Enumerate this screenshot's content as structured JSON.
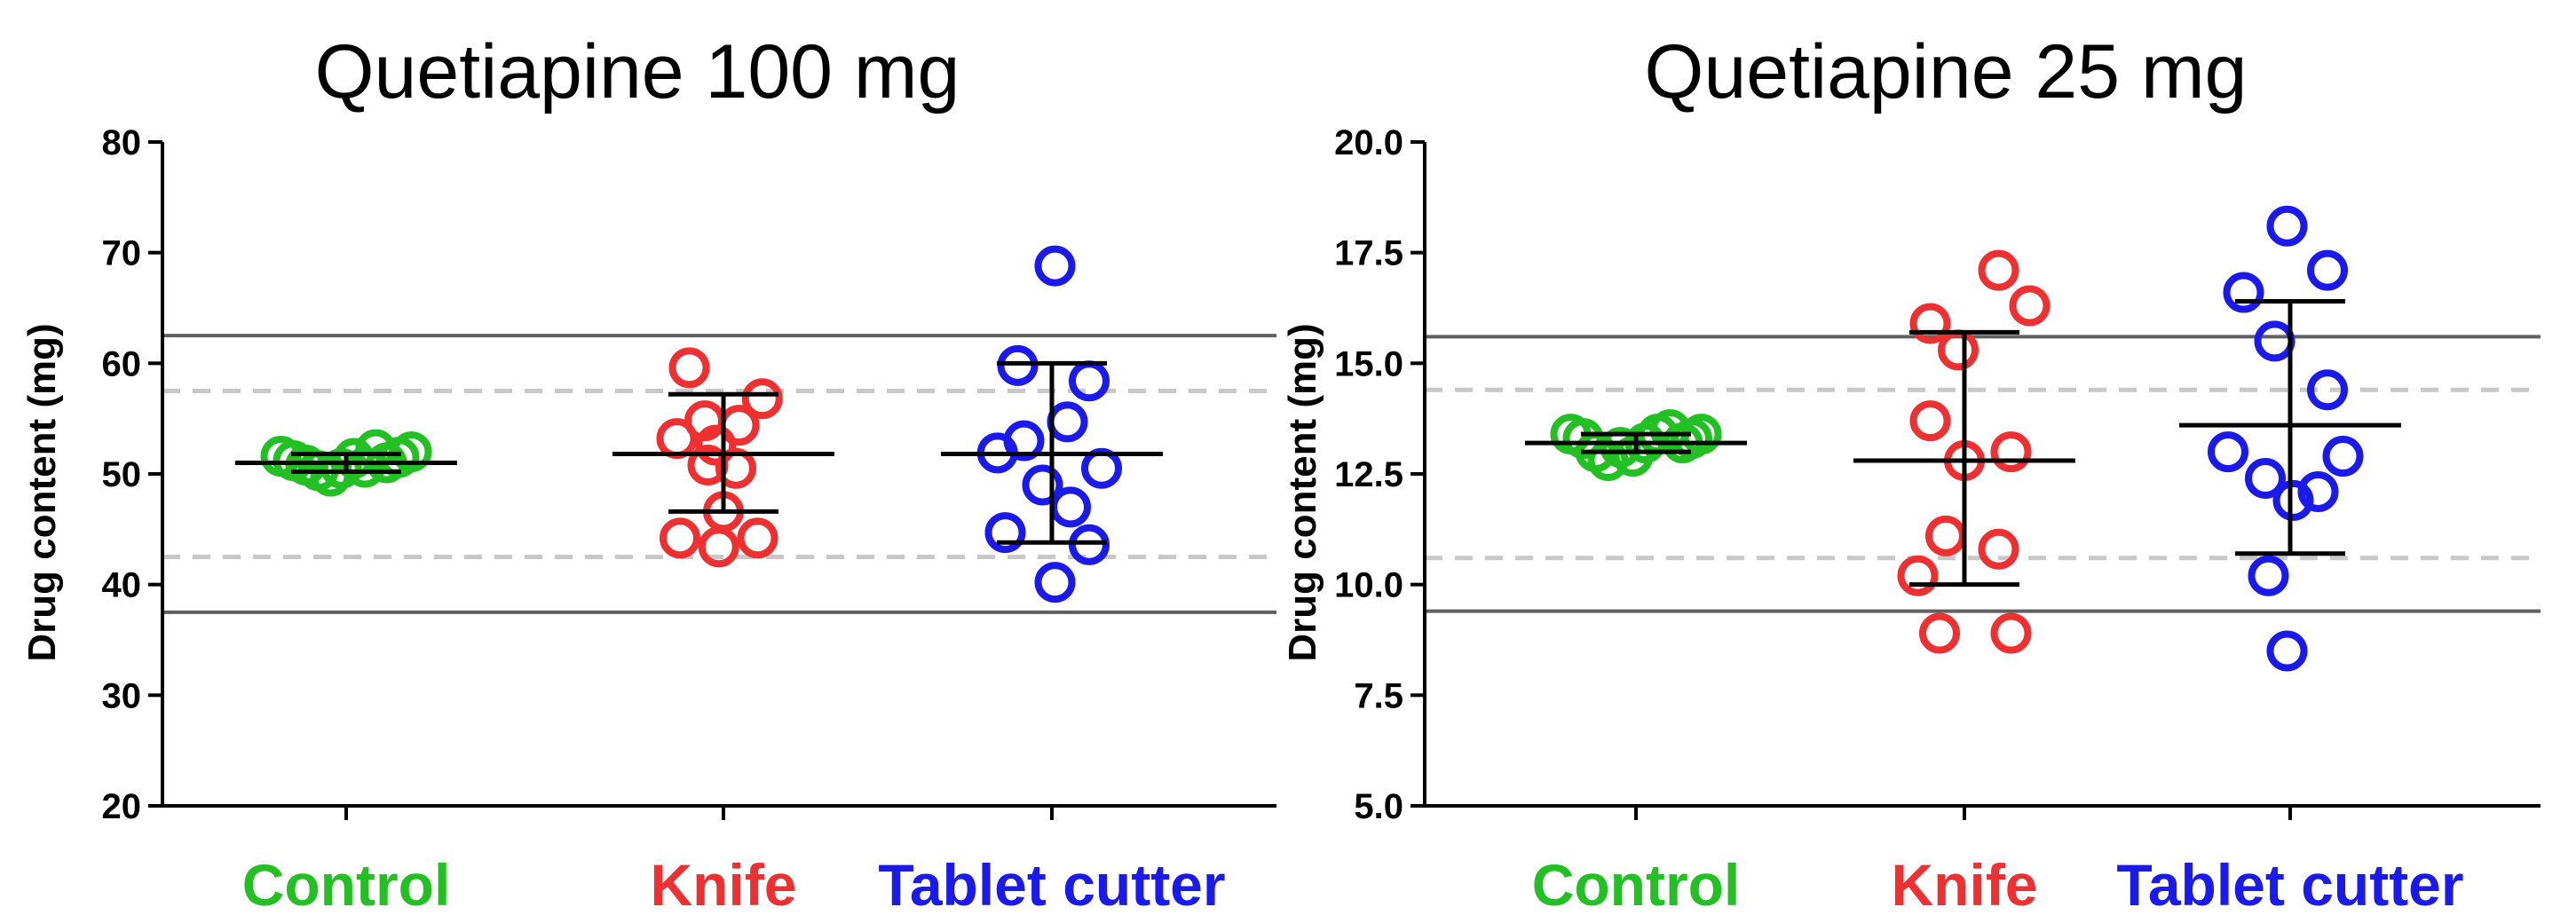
{
  "chart_data": [
    {
      "type": "scatter",
      "title": "Quetiapine 100 mg",
      "ylabel": "Drug content (mg)",
      "ylim": [
        20,
        80
      ],
      "yticks": [
        "20",
        "30",
        "40",
        "50",
        "60",
        "70",
        "80"
      ],
      "categories": [
        "Control",
        "Knife",
        "Tablet cutter"
      ],
      "category_colors": [
        "#22c022",
        "#f03030",
        "#1a1aee"
      ],
      "reference_lines": {
        "solid": [
          62.5,
          37.5
        ],
        "dashed": [
          57.5,
          42.5
        ]
      },
      "series": [
        {
          "name": "Control",
          "points": [
            [
              -0.42,
              51.6
            ],
            [
              -0.34,
              51.2
            ],
            [
              -0.26,
              50.8
            ],
            [
              -0.18,
              50.3
            ],
            [
              -0.1,
              49.8
            ],
            [
              -0.03,
              50.5
            ],
            [
              0.05,
              51.4
            ],
            [
              0.12,
              50.6
            ],
            [
              0.19,
              52.2
            ],
            [
              0.26,
              51.0
            ],
            [
              0.34,
              51.5
            ],
            [
              0.42,
              52.0
            ]
          ],
          "mean": 51.0,
          "sd_low": 50.2,
          "sd_high": 51.8
        },
        {
          "name": "Knife",
          "points": [
            [
              -0.22,
              59.6
            ],
            [
              -0.3,
              53.2
            ],
            [
              -0.12,
              54.8
            ],
            [
              -0.05,
              52.6
            ],
            [
              0.1,
              54.4
            ],
            [
              0.25,
              56.8
            ],
            [
              -0.28,
              44.2
            ],
            [
              -0.1,
              50.8
            ],
            [
              0.08,
              50.5
            ],
            [
              0.0,
              46.6
            ],
            [
              0.22,
              44.2
            ],
            [
              -0.03,
              43.4
            ]
          ],
          "mean": 51.8,
          "sd_low": 46.6,
          "sd_high": 57.2
        },
        {
          "name": "Tablet cutter",
          "points": [
            [
              0.02,
              68.8
            ],
            [
              -0.22,
              59.8
            ],
            [
              0.24,
              58.4
            ],
            [
              -0.35,
              51.9
            ],
            [
              -0.18,
              53.0
            ],
            [
              0.1,
              54.7
            ],
            [
              0.32,
              50.5
            ],
            [
              -0.06,
              49.0
            ],
            [
              0.12,
              47.0
            ],
            [
              -0.3,
              44.7
            ],
            [
              0.24,
              43.6
            ],
            [
              0.02,
              40.2
            ]
          ],
          "mean": 51.8,
          "sd_low": 43.8,
          "sd_high": 60.0
        }
      ]
    },
    {
      "type": "scatter",
      "title": "Quetiapine 25 mg",
      "ylabel": "Drug content (mg)",
      "ylim": [
        5.0,
        20.0
      ],
      "yticks": [
        "5.0",
        "7.5",
        "10.0",
        "12.5",
        "15.0",
        "17.5",
        "20.0"
      ],
      "categories": [
        "Control",
        "Knife",
        "Tablet cutter"
      ],
      "category_colors": [
        "#22c022",
        "#f03030",
        "#1a1aee"
      ],
      "reference_lines": {
        "solid": [
          15.6,
          9.4
        ],
        "dashed": [
          14.4,
          10.6
        ]
      },
      "series": [
        {
          "name": "Control",
          "points": [
            [
              -0.42,
              13.4
            ],
            [
              -0.34,
              13.3
            ],
            [
              -0.26,
              13.0
            ],
            [
              -0.18,
              12.8
            ],
            [
              -0.1,
              13.1
            ],
            [
              -0.02,
              12.9
            ],
            [
              0.06,
              13.2
            ],
            [
              0.14,
              13.4
            ],
            [
              0.22,
              13.5
            ],
            [
              0.3,
              13.2
            ],
            [
              0.36,
              13.3
            ],
            [
              0.42,
              13.4
            ]
          ],
          "mean": 13.2,
          "sd_low": 13.0,
          "sd_high": 13.4
        },
        {
          "name": "Knife",
          "points": [
            [
              0.22,
              17.1
            ],
            [
              -0.22,
              15.9
            ],
            [
              0.42,
              16.3
            ],
            [
              -0.04,
              15.3
            ],
            [
              -0.22,
              13.7
            ],
            [
              0.0,
              12.8
            ],
            [
              0.3,
              13.0
            ],
            [
              -0.12,
              11.1
            ],
            [
              0.22,
              10.8
            ],
            [
              -0.3,
              10.2
            ],
            [
              -0.16,
              8.9
            ],
            [
              0.3,
              8.9
            ]
          ],
          "mean": 12.8,
          "sd_low": 10.0,
          "sd_high": 15.7
        },
        {
          "name": "Tablet cutter",
          "points": [
            [
              -0.02,
              18.1
            ],
            [
              0.24,
              17.1
            ],
            [
              -0.3,
              16.6
            ],
            [
              -0.1,
              15.5
            ],
            [
              0.24,
              14.4
            ],
            [
              -0.4,
              13.0
            ],
            [
              0.34,
              12.9
            ],
            [
              -0.16,
              12.4
            ],
            [
              0.02,
              11.9
            ],
            [
              0.18,
              12.1
            ],
            [
              -0.14,
              10.2
            ],
            [
              -0.02,
              8.5
            ]
          ],
          "mean": 13.6,
          "sd_low": 10.7,
          "sd_high": 16.4
        }
      ]
    }
  ]
}
